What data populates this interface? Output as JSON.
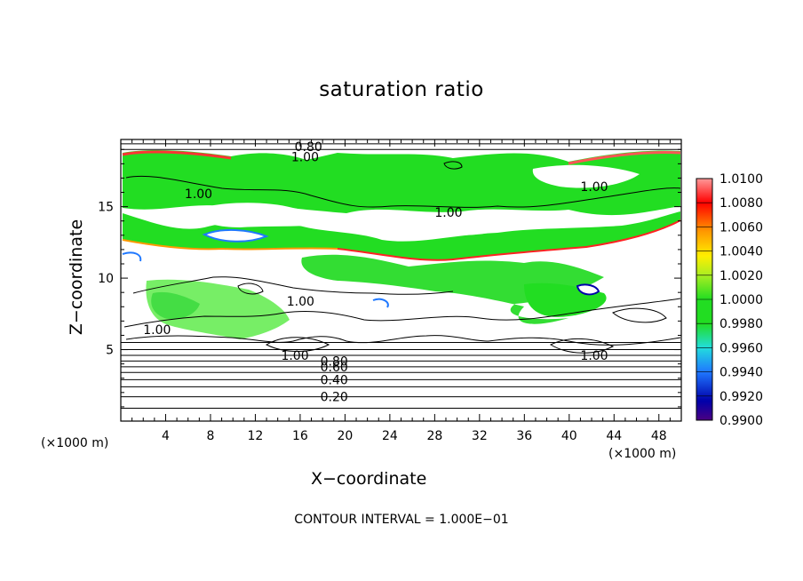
{
  "chart_data": {
    "type": "heatmap",
    "title": "saturation ratio",
    "xlabel": "X−coordinate",
    "ylabel": "Z−coordinate",
    "x_unit": "(×1000 m)",
    "z_unit": "(×1000 m)",
    "xlim": [
      0,
      50
    ],
    "ylim": [
      0,
      19.7
    ],
    "x_ticks": [
      4,
      8,
      12,
      16,
      20,
      24,
      28,
      32,
      36,
      40,
      44,
      48
    ],
    "y_ticks": [
      5,
      10,
      15
    ],
    "contour_interval_text": "CONTOUR INTERVAL = 1.000E−01",
    "contour_labels": [
      {
        "text": "0.20",
        "x": 17.8,
        "z": 1.7
      },
      {
        "text": "0.40",
        "x": 17.8,
        "z": 2.9
      },
      {
        "text": "0.60",
        "x": 17.8,
        "z": 3.8
      },
      {
        "text": "0.80",
        "x": 17.8,
        "z": 4.2
      },
      {
        "text": "1.00",
        "x": 14.3,
        "z": 4.6
      },
      {
        "text": "1.00",
        "x": 41.0,
        "z": 4.6
      },
      {
        "text": "1.00",
        "x": 2.0,
        "z": 6.4
      },
      {
        "text": "1.00",
        "x": 14.8,
        "z": 8.4
      },
      {
        "text": "1.00",
        "x": 5.7,
        "z": 15.9
      },
      {
        "text": "1.00",
        "x": 28.0,
        "z": 14.6
      },
      {
        "text": "1.00",
        "x": 41.0,
        "z": 16.4
      },
      {
        "text": "1.00",
        "x": 15.2,
        "z": 18.5
      },
      {
        "text": "0.80",
        "x": 15.5,
        "z": 19.2
      }
    ],
    "colorbar": {
      "labels": [
        "1.0100",
        "1.0080",
        "1.0060",
        "1.0040",
        "1.0020",
        "1.0000",
        "0.9980",
        "0.9960",
        "0.9940",
        "0.9920",
        "0.9900"
      ],
      "range": [
        0.99,
        1.01
      ]
    },
    "colors": {
      "supersat_high": "#ff6a6a",
      "near_one_green": "#22dd22",
      "light_green": "#88ee88",
      "subsat_blue": "#1f78ff"
    }
  }
}
